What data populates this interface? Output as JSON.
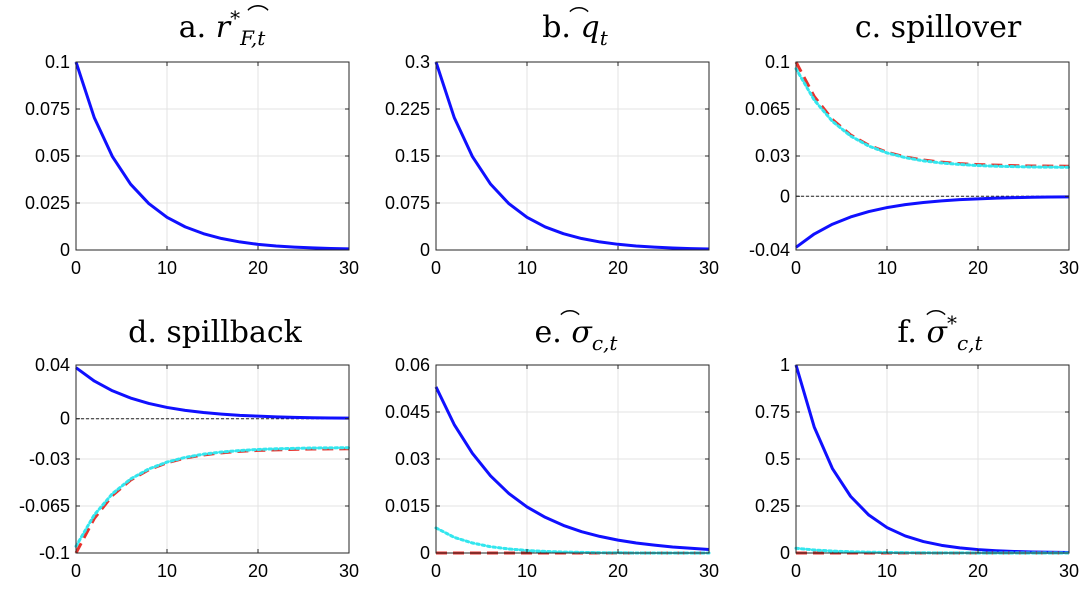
{
  "chart_data": [
    {
      "type": "line",
      "title": "a. r̂*F,t",
      "xlim": [
        0,
        30
      ],
      "ylim": [
        0,
        0.1
      ],
      "x_ticks": [
        0,
        10,
        20,
        30
      ],
      "y_ticks": [
        0,
        0.025,
        0.05,
        0.075,
        0.1
      ],
      "y_tick_labels": [
        "0",
        "0.025",
        "0.05",
        "0.075",
        "0.1"
      ],
      "zero_line": false,
      "grid": true,
      "series": [
        {
          "style": "solid",
          "color": "#1010ff",
          "x": [
            0,
            2,
            4,
            6,
            8,
            10,
            12,
            14,
            16,
            18,
            20,
            22,
            24,
            26,
            28,
            30
          ],
          "y": [
            0.1,
            0.0705,
            0.0497,
            0.035,
            0.0247,
            0.0174,
            0.0123,
            0.0087,
            0.0061,
            0.0043,
            0.003,
            0.0021,
            0.0015,
            0.0011,
            0.0008,
            0.0006
          ]
        }
      ]
    },
    {
      "type": "line",
      "title": "b. q̂t",
      "xlim": [
        0,
        30
      ],
      "ylim": [
        0,
        0.3
      ],
      "x_ticks": [
        0,
        10,
        20,
        30
      ],
      "y_ticks": [
        0,
        0.075,
        0.15,
        0.225,
        0.3
      ],
      "y_tick_labels": [
        "0",
        "0.075",
        "0.15",
        "0.225",
        "0.3"
      ],
      "zero_line": false,
      "grid": true,
      "series": [
        {
          "style": "solid",
          "color": "#1010ff",
          "x": [
            0,
            2,
            4,
            6,
            8,
            10,
            12,
            14,
            16,
            18,
            20,
            22,
            24,
            26,
            28,
            30
          ],
          "y": [
            0.3,
            0.2115,
            0.1491,
            0.1051,
            0.0741,
            0.0522,
            0.0368,
            0.026,
            0.0183,
            0.0129,
            0.0091,
            0.0064,
            0.0045,
            0.0032,
            0.0022,
            0.0016
          ]
        }
      ]
    },
    {
      "type": "line",
      "title": "c. spillover",
      "xlim": [
        0,
        30
      ],
      "ylim": [
        -0.04,
        0.1
      ],
      "x_ticks": [
        0,
        10,
        20,
        30
      ],
      "y_ticks": [
        -0.04,
        0,
        0.03,
        0.065,
        0.1
      ],
      "y_tick_labels": [
        "-0.04",
        "0",
        "0.03",
        "0.065",
        "0.1"
      ],
      "zero_line": true,
      "grid": true,
      "series": [
        {
          "style": "solid",
          "color": "#1010ff",
          "x": [
            0,
            2,
            4,
            6,
            8,
            10,
            12,
            14,
            16,
            18,
            20,
            22,
            24,
            26,
            28,
            30
          ],
          "y": [
            -0.038,
            -0.0281,
            -0.0208,
            -0.0154,
            -0.0114,
            -0.0084,
            -0.0062,
            -0.0046,
            -0.0034,
            -0.0025,
            -0.0019,
            -0.0014,
            -0.001,
            -0.0007,
            -0.0005,
            -0.0004
          ]
        },
        {
          "style": "dashed",
          "color": "#e8322c",
          "x": [
            0,
            2,
            4,
            6,
            8,
            10,
            12,
            14,
            16,
            18,
            20,
            22,
            24,
            26,
            28,
            30
          ],
          "y": [
            0.1,
            0.0744,
            0.0572,
            0.0457,
            0.038,
            0.0328,
            0.0293,
            0.027,
            0.0254,
            0.0243,
            0.0236,
            0.0232,
            0.0228,
            0.0226,
            0.0225,
            0.0224
          ]
        },
        {
          "style": "dotted",
          "color": "#33e6ee",
          "x": [
            0,
            2,
            4,
            6,
            8,
            10,
            12,
            14,
            16,
            18,
            20,
            22,
            24,
            26,
            28,
            30
          ],
          "y": [
            0.095,
            0.0717,
            0.0558,
            0.0449,
            0.0374,
            0.0323,
            0.0288,
            0.0264,
            0.0248,
            0.0237,
            0.0229,
            0.0224,
            0.0221,
            0.0218,
            0.0217,
            0.0216
          ]
        }
      ]
    },
    {
      "type": "line",
      "title": "d. spillback",
      "xlim": [
        0,
        30
      ],
      "ylim": [
        -0.1,
        0.04
      ],
      "x_ticks": [
        0,
        10,
        20,
        30
      ],
      "y_ticks": [
        -0.1,
        -0.065,
        -0.03,
        0,
        0.04
      ],
      "y_tick_labels": [
        "-0.1",
        "-0.065",
        "-0.03",
        "0",
        "0.04"
      ],
      "zero_line": true,
      "grid": true,
      "series": [
        {
          "style": "solid",
          "color": "#1010ff",
          "x": [
            0,
            2,
            4,
            6,
            8,
            10,
            12,
            14,
            16,
            18,
            20,
            22,
            24,
            26,
            28,
            30
          ],
          "y": [
            0.038,
            0.0281,
            0.0208,
            0.0154,
            0.0114,
            0.0084,
            0.0062,
            0.0046,
            0.0034,
            0.0025,
            0.0019,
            0.0014,
            0.001,
            0.0007,
            0.0005,
            0.0004
          ]
        },
        {
          "style": "dashed",
          "color": "#e8322c",
          "x": [
            0,
            2,
            4,
            6,
            8,
            10,
            12,
            14,
            16,
            18,
            20,
            22,
            24,
            26,
            28,
            30
          ],
          "y": [
            -0.1,
            -0.0744,
            -0.0572,
            -0.0457,
            -0.038,
            -0.0328,
            -0.0293,
            -0.027,
            -0.0254,
            -0.0243,
            -0.0236,
            -0.0232,
            -0.0228,
            -0.0226,
            -0.0225,
            -0.0224
          ]
        },
        {
          "style": "dotted",
          "color": "#33e6ee",
          "x": [
            0,
            2,
            4,
            6,
            8,
            10,
            12,
            14,
            16,
            18,
            20,
            22,
            24,
            26,
            28,
            30
          ],
          "y": [
            -0.095,
            -0.0717,
            -0.0558,
            -0.0449,
            -0.0374,
            -0.0323,
            -0.0288,
            -0.0264,
            -0.0248,
            -0.0237,
            -0.0229,
            -0.0224,
            -0.0221,
            -0.0218,
            -0.0217,
            -0.0216
          ]
        }
      ]
    },
    {
      "type": "line",
      "title": "e. σ̂c,t",
      "xlim": [
        0,
        30
      ],
      "ylim": [
        0,
        0.06
      ],
      "x_ticks": [
        0,
        10,
        20,
        30
      ],
      "y_ticks": [
        0,
        0.015,
        0.03,
        0.045,
        0.06
      ],
      "y_tick_labels": [
        "0",
        "0.015",
        "0.03",
        "0.045",
        "0.06"
      ],
      "zero_line": false,
      "grid": true,
      "series": [
        {
          "style": "solid",
          "color": "#1010ff",
          "x": [
            0,
            2,
            4,
            6,
            8,
            10,
            12,
            14,
            16,
            18,
            20,
            22,
            24,
            26,
            28,
            30
          ],
          "y": [
            0.053,
            0.041,
            0.0318,
            0.0246,
            0.019,
            0.0147,
            0.0114,
            0.0088,
            0.0068,
            0.0053,
            0.0041,
            0.0032,
            0.0025,
            0.0019,
            0.0015,
            0.0011
          ]
        },
        {
          "style": "dashed",
          "color": "#e8322c",
          "x": [
            0,
            2,
            4,
            6,
            8,
            10,
            12,
            14,
            16,
            18,
            20,
            22,
            24,
            26,
            28,
            30
          ],
          "y": [
            0,
            0,
            0,
            0,
            0,
            0,
            0,
            0,
            0,
            0,
            0,
            0,
            0,
            0,
            0,
            0
          ]
        },
        {
          "style": "dotted",
          "color": "#33e6ee",
          "x": [
            0,
            2,
            4,
            6,
            8,
            10,
            12,
            14,
            16,
            18,
            20,
            22,
            24,
            26,
            28,
            30
          ],
          "y": [
            0.008,
            0.005,
            0.0032,
            0.002,
            0.0013,
            0.0008,
            0.0005,
            0.0003,
            0.0002,
            0.0001,
            0.0001,
            0,
            0,
            0,
            0,
            0
          ]
        }
      ]
    },
    {
      "type": "line",
      "title": "f. σ̂*c,t",
      "xlim": [
        0,
        30
      ],
      "ylim": [
        0,
        1
      ],
      "x_ticks": [
        0,
        10,
        20,
        30
      ],
      "y_ticks": [
        0,
        0.25,
        0.5,
        0.75,
        1
      ],
      "y_tick_labels": [
        "0",
        "0.25",
        "0.5",
        "0.75",
        "1"
      ],
      "zero_line": false,
      "grid": true,
      "series": [
        {
          "style": "solid",
          "color": "#1010ff",
          "x": [
            0,
            2,
            4,
            6,
            8,
            10,
            12,
            14,
            16,
            18,
            20,
            22,
            24,
            26,
            28,
            30
          ],
          "y": [
            1,
            0.6703,
            0.4493,
            0.3012,
            0.2019,
            0.1353,
            0.0907,
            0.0608,
            0.0408,
            0.0273,
            0.0183,
            0.0123,
            0.0082,
            0.0055,
            0.0037,
            0.0025
          ]
        },
        {
          "style": "dashed",
          "color": "#e8322c",
          "x": [
            0,
            2,
            4,
            6,
            8,
            10,
            12,
            14,
            16,
            18,
            20,
            22,
            24,
            26,
            28,
            30
          ],
          "y": [
            0,
            0,
            0,
            0,
            0,
            0,
            0,
            0,
            0,
            0,
            0,
            0,
            0,
            0,
            0,
            0
          ]
        },
        {
          "style": "dotted",
          "color": "#33e6ee",
          "x": [
            0,
            2,
            4,
            6,
            8,
            10,
            12,
            14,
            16,
            18,
            20,
            22,
            24,
            26,
            28,
            30
          ],
          "y": [
            0.025,
            0.016,
            0.0103,
            0.0066,
            0.0042,
            0.0027,
            0.0017,
            0.0011,
            0.0007,
            0.0005,
            0.0003,
            0.0002,
            0.0001,
            0.0001,
            0,
            0
          ]
        }
      ]
    }
  ]
}
